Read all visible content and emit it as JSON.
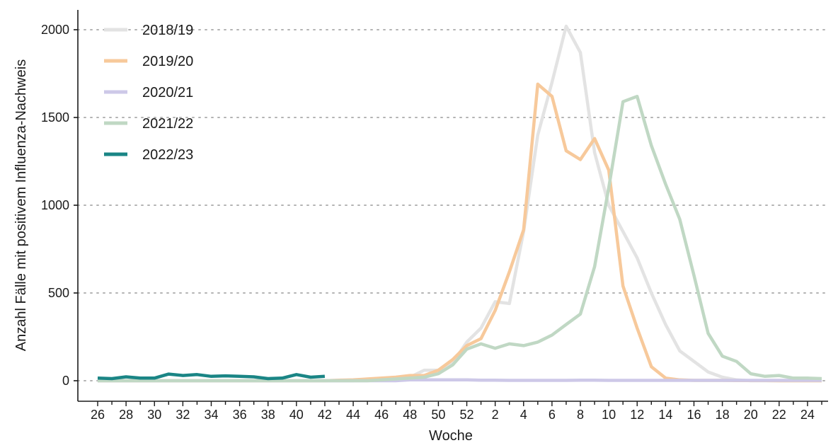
{
  "chart_data": {
    "type": "line",
    "title": "",
    "xlabel": "Woche",
    "ylabel": "Anzahl Fälle mit positivem Influenza-Nachweis",
    "ylim": [
      0,
      2000
    ],
    "yticks": [
      0,
      500,
      1000,
      1500,
      2000
    ],
    "ytick_labels": [
      "0",
      "500",
      "1000",
      "1500",
      "2000"
    ],
    "grid": "horizontal-dotted",
    "legend_position": "top-left",
    "x_week_order": [
      26,
      27,
      28,
      29,
      30,
      31,
      32,
      33,
      34,
      35,
      36,
      37,
      38,
      39,
      40,
      41,
      42,
      43,
      44,
      45,
      46,
      47,
      48,
      49,
      50,
      51,
      52,
      1,
      2,
      3,
      4,
      5,
      6,
      7,
      8,
      9,
      10,
      11,
      12,
      13,
      14,
      15,
      16,
      17,
      18,
      19,
      20,
      21,
      22,
      23,
      24,
      25
    ],
    "xtick_labels": [
      "26",
      "28",
      "30",
      "32",
      "34",
      "36",
      "38",
      "40",
      "42",
      "44",
      "46",
      "48",
      "50",
      "52",
      "2",
      "4",
      "6",
      "8",
      "10",
      "12",
      "14",
      "16",
      "18",
      "20",
      "22",
      "24"
    ],
    "series": [
      {
        "name": "2018/19",
        "color": "#e3e3e3",
        "values": [
          0,
          0,
          0,
          0,
          0,
          0,
          0,
          0,
          0,
          0,
          0,
          0,
          0,
          0,
          0,
          0,
          0,
          0,
          0,
          3,
          5,
          10,
          20,
          60,
          60,
          100,
          220,
          300,
          450,
          440,
          850,
          1400,
          1700,
          2020,
          1870,
          1300,
          1000,
          850,
          700,
          500,
          320,
          170,
          110,
          50,
          20,
          5,
          0,
          0,
          0,
          0,
          0,
          0
        ]
      },
      {
        "name": "2019/20",
        "color": "#f7c99b",
        "values": [
          0,
          0,
          0,
          0,
          0,
          0,
          0,
          0,
          0,
          0,
          0,
          0,
          0,
          0,
          0,
          0,
          0,
          3,
          5,
          10,
          15,
          20,
          30,
          30,
          60,
          120,
          200,
          240,
          400,
          620,
          860,
          1690,
          1620,
          1310,
          1260,
          1380,
          1200,
          540,
          300,
          80,
          15,
          5,
          2,
          2,
          2,
          1,
          1,
          1,
          0,
          0,
          0,
          0
        ]
      },
      {
        "name": "2020/21",
        "color": "#cdc8e8",
        "values": [
          0,
          0,
          0,
          0,
          0,
          0,
          0,
          0,
          0,
          0,
          0,
          0,
          0,
          0,
          0,
          0,
          0,
          0,
          0,
          0,
          0,
          0,
          5,
          5,
          5,
          5,
          5,
          3,
          3,
          2,
          2,
          2,
          2,
          2,
          3,
          3,
          2,
          2,
          2,
          2,
          2,
          2,
          2,
          2,
          2,
          2,
          2,
          2,
          2,
          2,
          2,
          2
        ]
      },
      {
        "name": "2021/22",
        "color": "#c0d8c4",
        "values": [
          0,
          0,
          0,
          0,
          0,
          0,
          0,
          0,
          0,
          0,
          0,
          0,
          0,
          0,
          0,
          0,
          0,
          0,
          0,
          0,
          5,
          10,
          15,
          20,
          40,
          90,
          180,
          210,
          185,
          210,
          200,
          220,
          260,
          320,
          380,
          650,
          1100,
          1590,
          1620,
          1340,
          1120,
          920,
          600,
          270,
          140,
          110,
          40,
          25,
          30,
          15,
          15,
          12
        ]
      },
      {
        "name": "2022/23",
        "color": "#1a8585",
        "values": [
          15,
          12,
          22,
          15,
          15,
          38,
          30,
          35,
          25,
          28,
          25,
          22,
          12,
          15,
          35,
          20,
          25
        ]
      }
    ]
  }
}
